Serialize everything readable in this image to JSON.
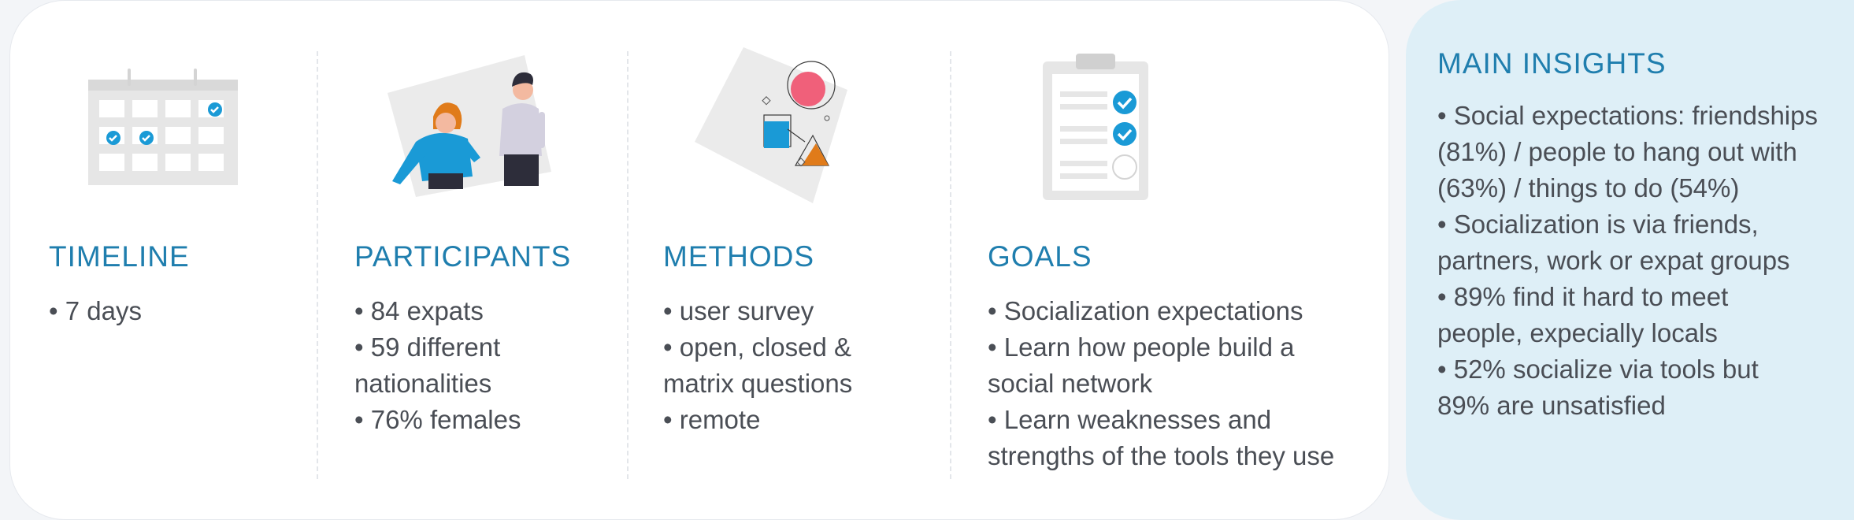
{
  "timeline": {
    "heading": "TIMELINE",
    "items": [
      "• 7 days"
    ]
  },
  "participants": {
    "heading": "PARTICIPANTS",
    "items": [
      "• 84 expats",
      "• 59 different nationalities",
      "• 76% females"
    ]
  },
  "methods": {
    "heading": "METHODS",
    "items": [
      "• user survey",
      "• open, closed & matrix questions",
      "• remote"
    ]
  },
  "goals": {
    "heading": "GOALS",
    "items": [
      "• Socialization expectations",
      "• Learn how people build a social network",
      "• Learn weaknesses and strengths of the tools they use"
    ]
  },
  "insights": {
    "title": "MAIN INSIGHTS",
    "items": [
      "• Social expectations: friendships (81%) / people to hang out with (63%) / things to do (54%)",
      "• Socialization is via friends, partners, work or expat groups",
      "• 89% find it hard to meet people, expecially locals",
      "• 52% socialize via tools but 89% are unsatisfied"
    ]
  },
  "colors": {
    "accent_blue": "#1f7eae",
    "check_blue": "#1a9ad6",
    "pink": "#f0607a",
    "orange": "#e07b1a",
    "insights_bg": "#deeff7"
  }
}
